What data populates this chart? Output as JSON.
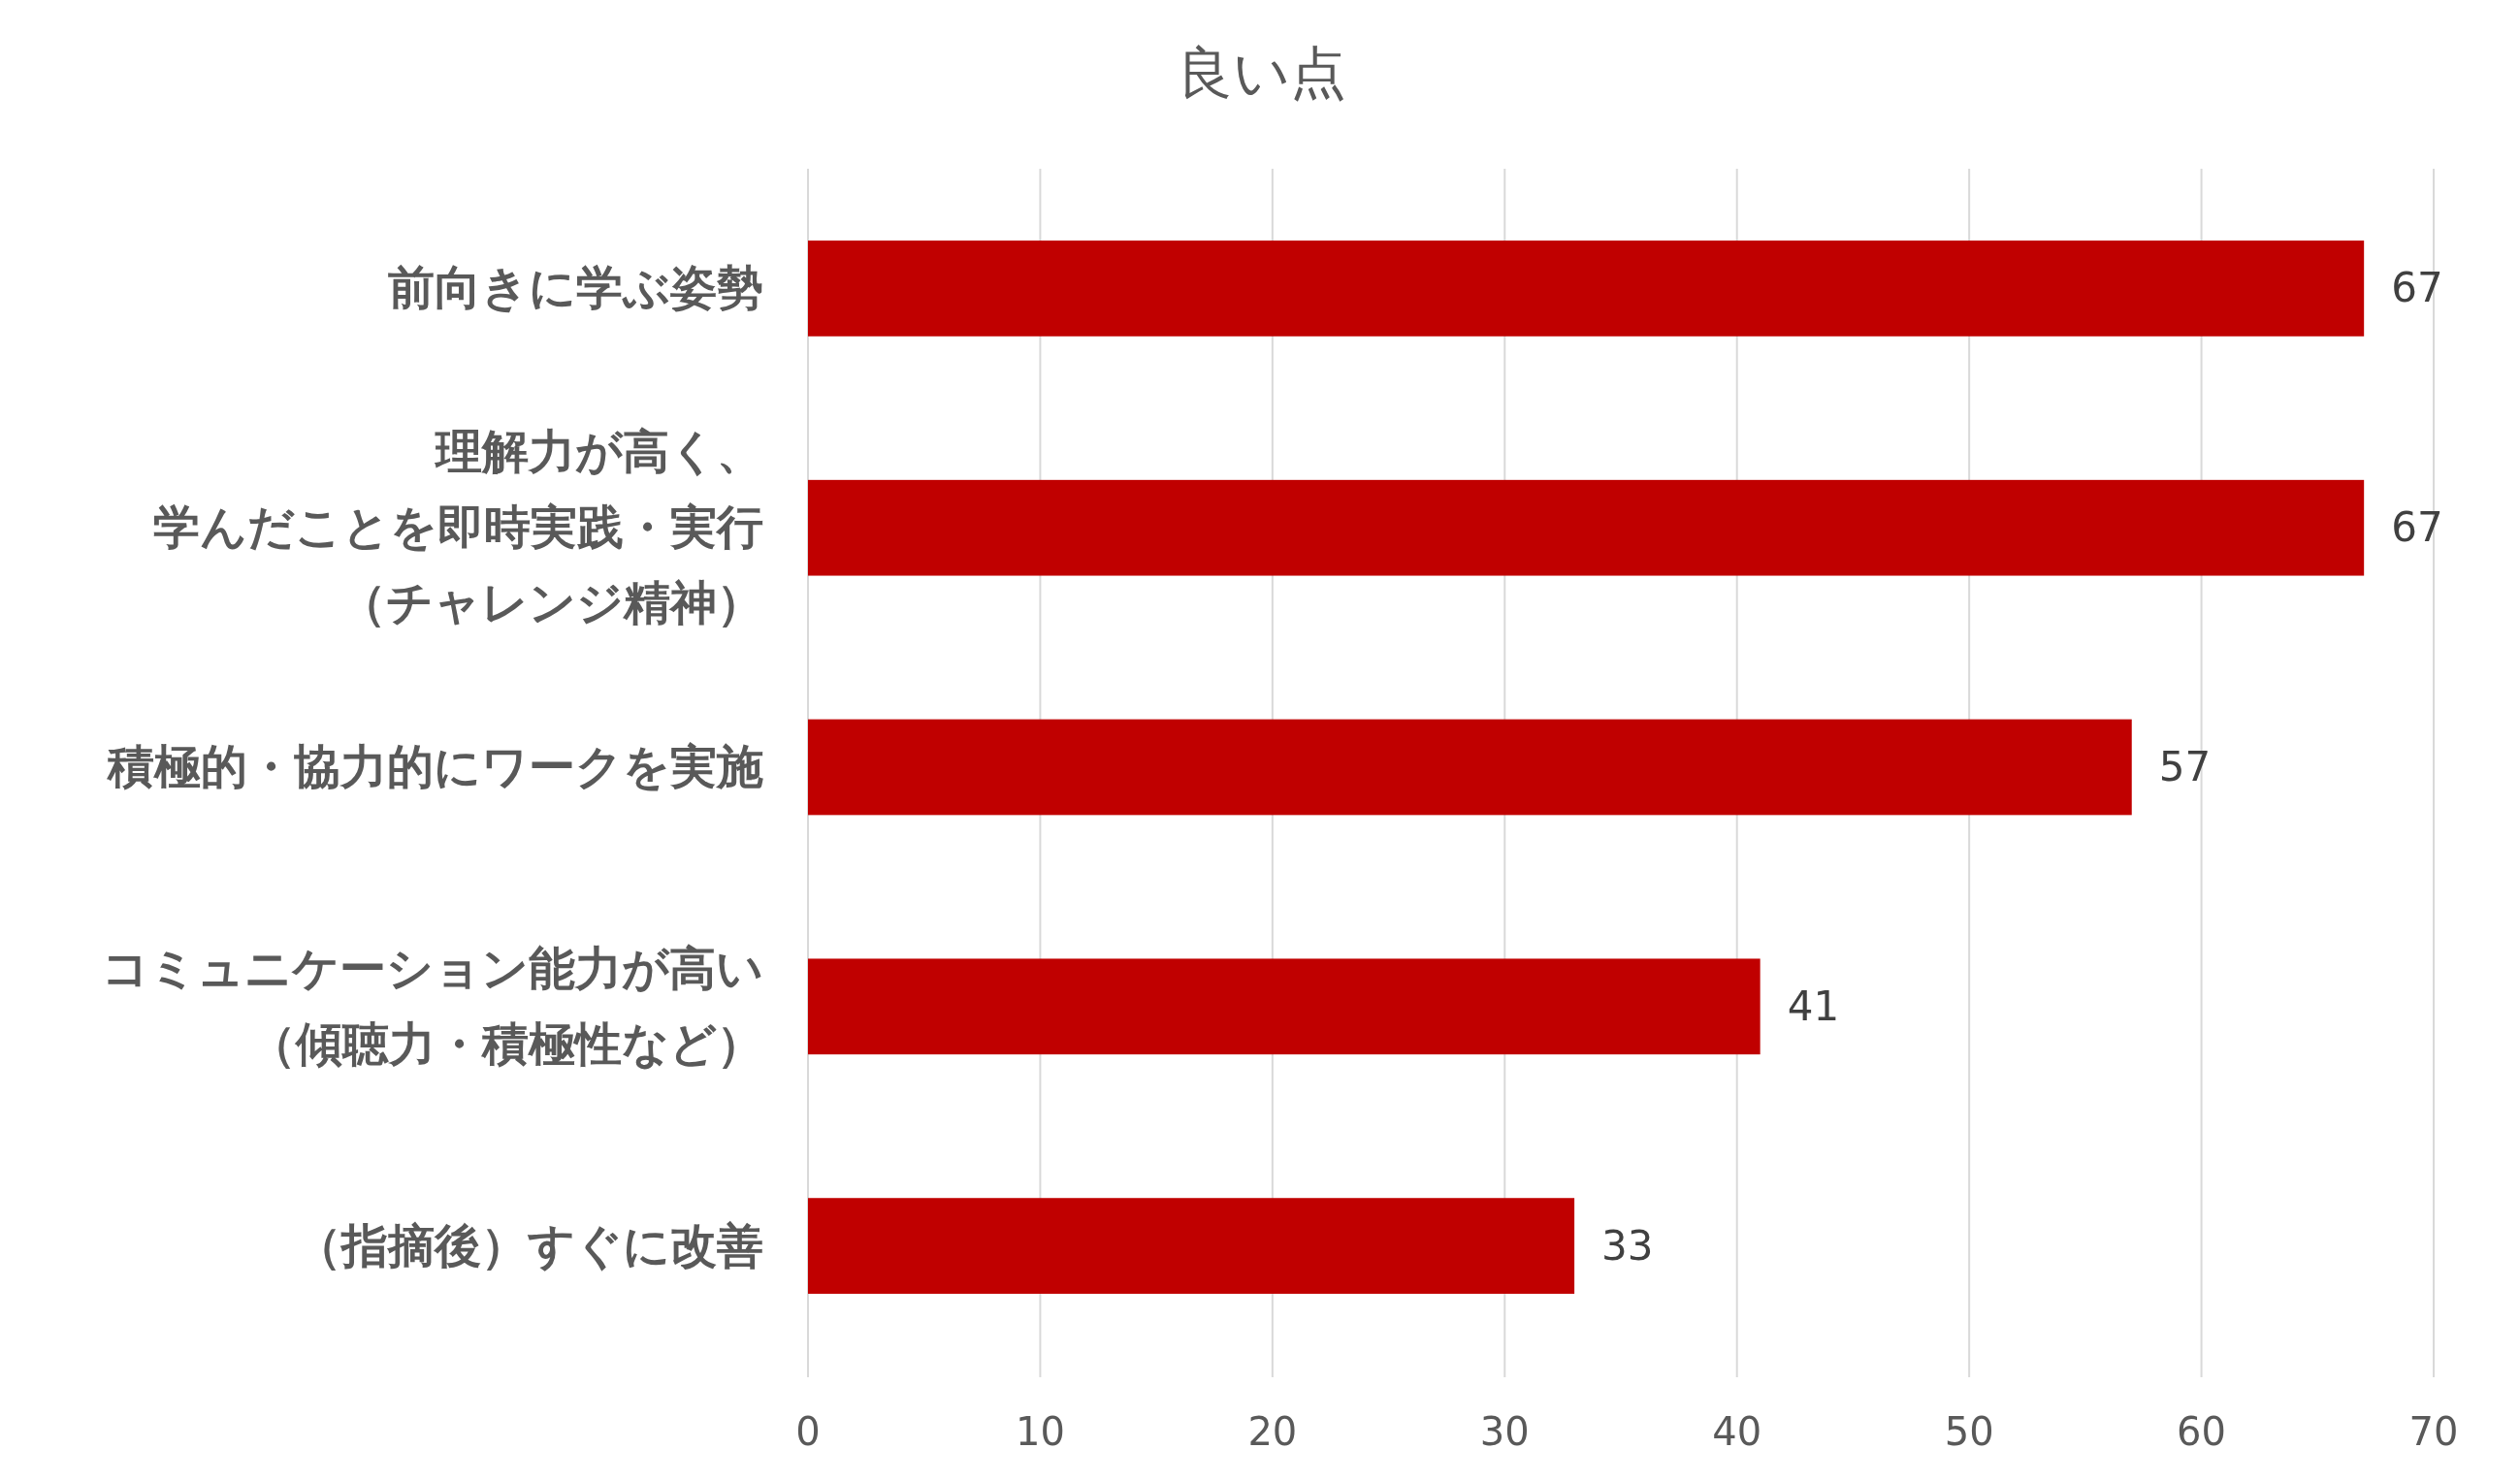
{
  "chart_data": {
    "type": "bar",
    "orientation": "horizontal",
    "title": "良い点",
    "categories": [
      "前向きに学ぶ姿勢",
      "理解力が高く、学んだことを即時実践・実行（チャレンジ精神）",
      "積極的・協力的にワークを実施",
      "コミュニケーション能力が高い（傾聴力・積極性など）",
      "（指摘後）すぐに改善"
    ],
    "values": [
      67,
      67,
      57,
      41,
      33
    ],
    "color": "#c00000",
    "xlim": [
      0,
      70
    ],
    "xticks": [
      0,
      10,
      20,
      30,
      40,
      50,
      60,
      70
    ],
    "grid": "x",
    "data_labels": true
  }
}
